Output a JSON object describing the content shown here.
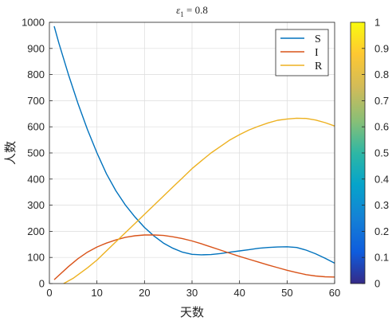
{
  "chart_data": {
    "type": "line",
    "title": {
      "symbol": "ε",
      "subscript": "1",
      "suffix": " = 0.8"
    },
    "xlabel": "天数",
    "ylabel": "人数",
    "xlim": [
      0,
      60
    ],
    "ylim": [
      0,
      1000
    ],
    "xticks": [
      0,
      10,
      20,
      30,
      40,
      50,
      60
    ],
    "yticks": [
      0,
      100,
      200,
      300,
      400,
      500,
      600,
      700,
      800,
      900,
      1000
    ],
    "grid": true,
    "legend_position": "top-right",
    "series": [
      {
        "name": "S",
        "color": "#0072BD",
        "x": [
          1,
          2,
          4,
          6,
          8,
          10,
          12,
          14,
          16,
          18,
          20,
          22,
          24,
          26,
          28,
          30,
          32,
          34,
          36,
          38,
          40,
          42,
          44,
          46,
          48,
          50,
          52,
          54,
          56,
          58,
          60
        ],
        "y": [
          985,
          920,
          800,
          690,
          590,
          500,
          420,
          355,
          300,
          255,
          215,
          182,
          155,
          135,
          120,
          112,
          110,
          111,
          115,
          120,
          125,
          130,
          135,
          138,
          140,
          141,
          138,
          128,
          114,
          97,
          78
        ]
      },
      {
        "name": "I",
        "color": "#D95319",
        "x": [
          1,
          4,
          6,
          8,
          10,
          12,
          14,
          16,
          18,
          20,
          22,
          24,
          26,
          28,
          30,
          32,
          34,
          36,
          38,
          40,
          42,
          44,
          46,
          48,
          50,
          52,
          54,
          56,
          58,
          60
        ],
        "y": [
          15,
          65,
          95,
          120,
          140,
          155,
          167,
          177,
          183,
          186,
          186,
          184,
          179,
          172,
          163,
          152,
          140,
          128,
          116,
          104,
          93,
          82,
          71,
          61,
          51,
          42,
          34,
          29,
          26,
          25
        ]
      },
      {
        "name": "R",
        "color": "#EDB120",
        "x": [
          3,
          5,
          8,
          10,
          12,
          14,
          16,
          18,
          20,
          22,
          24,
          26,
          28,
          30,
          32,
          34,
          36,
          38,
          40,
          42,
          44,
          46,
          48,
          50,
          52,
          54,
          56,
          58,
          60
        ],
        "y": [
          0,
          20,
          60,
          90,
          125,
          160,
          195,
          230,
          265,
          300,
          335,
          370,
          405,
          440,
          470,
          500,
          525,
          550,
          570,
          588,
          602,
          615,
          625,
          630,
          633,
          632,
          626,
          616,
          603
        ]
      }
    ],
    "colorbar": {
      "min": 0,
      "max": 1,
      "ticks": [
        "0",
        "0.1",
        "0.2",
        "0.3",
        "0.4",
        "0.5",
        "0.6",
        "0.7",
        "0.8",
        "0.9",
        "1"
      ]
    }
  }
}
